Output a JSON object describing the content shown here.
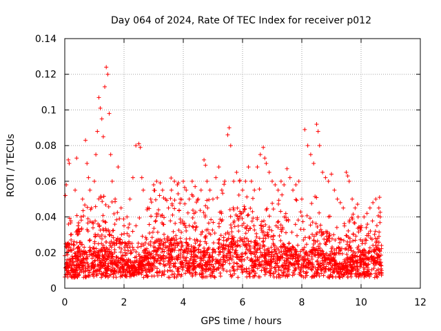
{
  "chart_data": {
    "type": "scatter",
    "title": "Day 064 of 2024, Rate Of TEC Index for receiver p012",
    "xlabel": "GPS time / hours",
    "ylabel": "ROTI / TECUs",
    "xlim": [
      0,
      12
    ],
    "ylim": [
      0,
      0.14
    ],
    "xticks": [
      0,
      2,
      4,
      6,
      8,
      10,
      12
    ],
    "yticks": [
      0,
      0.02,
      0.04,
      0.06,
      0.08,
      0.1,
      0.12,
      0.14
    ],
    "xtick_labels": [
      "0",
      "2",
      "4",
      "6",
      "8",
      "10",
      "12"
    ],
    "ytick_labels": [
      "0",
      "0.02",
      "0.04",
      "0.06",
      "0.08",
      "0.1",
      "0.12",
      "0.14"
    ],
    "grid": true,
    "marker": "+",
    "color": "#ff0000",
    "data_span_hours": [
      0,
      10.7
    ],
    "series": [
      {
        "name": "ROTI",
        "notes": "dense cloud of measurements, mostly 0.005-0.04 TECU/s",
        "x": [
          0.02,
          0.05,
          0.08,
          0.12,
          0.15,
          0.2,
          0.25,
          0.3,
          0.35,
          0.4,
          0.45,
          0.5,
          0.55,
          0.6,
          0.7,
          0.75,
          0.8,
          0.85,
          0.9,
          1.0,
          1.05,
          1.1,
          1.15,
          1.2,
          1.25,
          1.3,
          1.35,
          1.4,
          1.45,
          1.5,
          1.55,
          1.6,
          1.7,
          1.8,
          1.9,
          2.0,
          2.1,
          2.2,
          2.3,
          2.4,
          2.5,
          2.55,
          2.6,
          2.65,
          2.8,
          2.9,
          3.0,
          3.1,
          3.2,
          3.3,
          3.4,
          3.5,
          3.6,
          3.7,
          3.8,
          3.9,
          4.0,
          4.1,
          4.2,
          4.3,
          4.4,
          4.5,
          4.6,
          4.7,
          4.75,
          4.8,
          4.9,
          5.0,
          5.1,
          5.2,
          5.3,
          5.4,
          5.5,
          5.55,
          5.6,
          5.7,
          5.8,
          5.9,
          6.0,
          6.1,
          6.2,
          6.3,
          6.4,
          6.5,
          6.6,
          6.7,
          6.75,
          6.8,
          6.9,
          7.0,
          7.1,
          7.2,
          7.3,
          7.4,
          7.5,
          7.6,
          7.7,
          7.8,
          7.9,
          8.0,
          8.1,
          8.2,
          8.3,
          8.4,
          8.5,
          8.55,
          8.6,
          8.7,
          8.8,
          8.9,
          9.0,
          9.1,
          9.2,
          9.3,
          9.4,
          9.5,
          9.55,
          9.6,
          9.7,
          9.8,
          9.9,
          10.0,
          10.1,
          10.2,
          10.3,
          10.4,
          10.5,
          10.6,
          10.65
        ],
        "y": [
          0.052,
          0.058,
          0.025,
          0.072,
          0.07,
          0.03,
          0.018,
          0.022,
          0.055,
          0.073,
          0.035,
          0.022,
          0.04,
          0.05,
          0.083,
          0.07,
          0.062,
          0.055,
          0.045,
          0.06,
          0.075,
          0.088,
          0.107,
          0.101,
          0.095,
          0.085,
          0.113,
          0.124,
          0.12,
          0.098,
          0.075,
          0.06,
          0.05,
          0.068,
          0.045,
          0.035,
          0.04,
          0.05,
          0.062,
          0.08,
          0.081,
          0.079,
          0.062,
          0.055,
          0.045,
          0.05,
          0.058,
          0.06,
          0.052,
          0.055,
          0.05,
          0.045,
          0.055,
          0.06,
          0.058,
          0.05,
          0.06,
          0.055,
          0.05,
          0.06,
          0.057,
          0.05,
          0.055,
          0.072,
          0.069,
          0.06,
          0.055,
          0.05,
          0.062,
          0.068,
          0.055,
          0.06,
          0.086,
          0.09,
          0.08,
          0.06,
          0.065,
          0.06,
          0.055,
          0.06,
          0.068,
          0.06,
          0.055,
          0.068,
          0.075,
          0.079,
          0.073,
          0.07,
          0.065,
          0.06,
          0.058,
          0.055,
          0.06,
          0.058,
          0.067,
          0.062,
          0.055,
          0.058,
          0.06,
          0.05,
          0.089,
          0.08,
          0.075,
          0.07,
          0.092,
          0.088,
          0.08,
          0.065,
          0.062,
          0.06,
          0.064,
          0.055,
          0.05,
          0.048,
          0.045,
          0.065,
          0.063,
          0.06,
          0.05,
          0.045,
          0.04,
          0.035,
          0.04,
          0.042,
          0.045,
          0.048,
          0.05,
          0.045,
          0.04
        ]
      }
    ]
  }
}
